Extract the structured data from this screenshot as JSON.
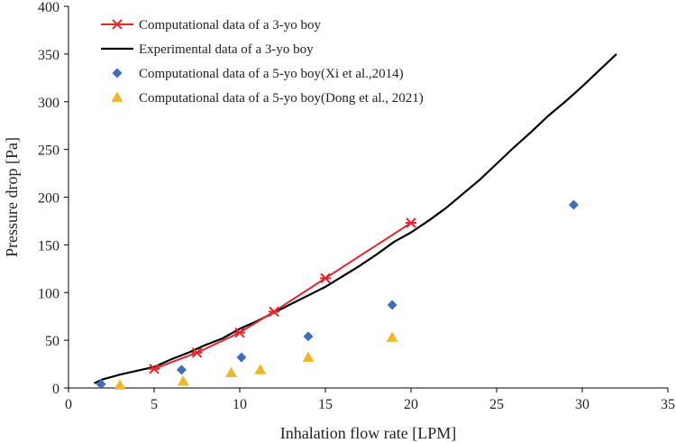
{
  "chart_data": {
    "type": "line",
    "title": "",
    "xlabel": "Inhalation flow rate [LPM]",
    "ylabel": "Pressure drop [Pa]",
    "xlim": [
      0,
      35
    ],
    "ylim": [
      0,
      400
    ],
    "xticks": [
      "0",
      "5",
      "10",
      "15",
      "20",
      "25",
      "30",
      "35"
    ],
    "yticks": [
      "0",
      "50",
      "100",
      "150",
      "200",
      "250",
      "300",
      "350",
      "400"
    ],
    "grid": false,
    "legend_position": "top-left",
    "colors": {
      "comp3": "#e0282e",
      "exp3": "#000000",
      "xi5": "#3f6fb7",
      "dong5": "#f0b72a"
    },
    "series": [
      {
        "name": "Computational data of a 3-yo boy",
        "kind": "line-marker",
        "marker": "asterisk",
        "x": [
          5,
          7.5,
          10,
          12,
          15,
          20
        ],
        "y": [
          20,
          37,
          58,
          80,
          115,
          173
        ]
      },
      {
        "name": "Experimental data of a 3-yo boy",
        "kind": "line",
        "marker": "none",
        "x": [
          1.5,
          2,
          3,
          4,
          5,
          6,
          7,
          8,
          9,
          10,
          11,
          12,
          13,
          14,
          15,
          16,
          17,
          18,
          19,
          20,
          21,
          22,
          23,
          24,
          25,
          26,
          27,
          28,
          29,
          30,
          31,
          32
        ],
        "y": [
          5,
          9,
          14,
          18,
          22,
          30,
          37,
          45,
          52,
          62,
          70,
          79,
          88,
          97,
          106,
          117,
          128,
          140,
          153,
          163,
          175,
          188,
          203,
          218,
          235,
          252,
          268,
          285,
          300,
          316,
          333,
          350
        ]
      },
      {
        "name": "Computational data of a 5-yo boy(Xi et al.,2014)",
        "kind": "scatter",
        "marker": "diamond",
        "x": [
          1.9,
          6.6,
          10.1,
          14,
          18.9,
          29.5
        ],
        "y": [
          4,
          19,
          32,
          54,
          87,
          192
        ]
      },
      {
        "name": "Computational data of a 5-yo boy(Dong et al., 2021)",
        "kind": "scatter",
        "marker": "triangle",
        "x": [
          3,
          6.7,
          9.5,
          11.2,
          14,
          18.9
        ],
        "y": [
          3,
          7,
          16,
          19,
          32,
          53
        ]
      }
    ]
  }
}
